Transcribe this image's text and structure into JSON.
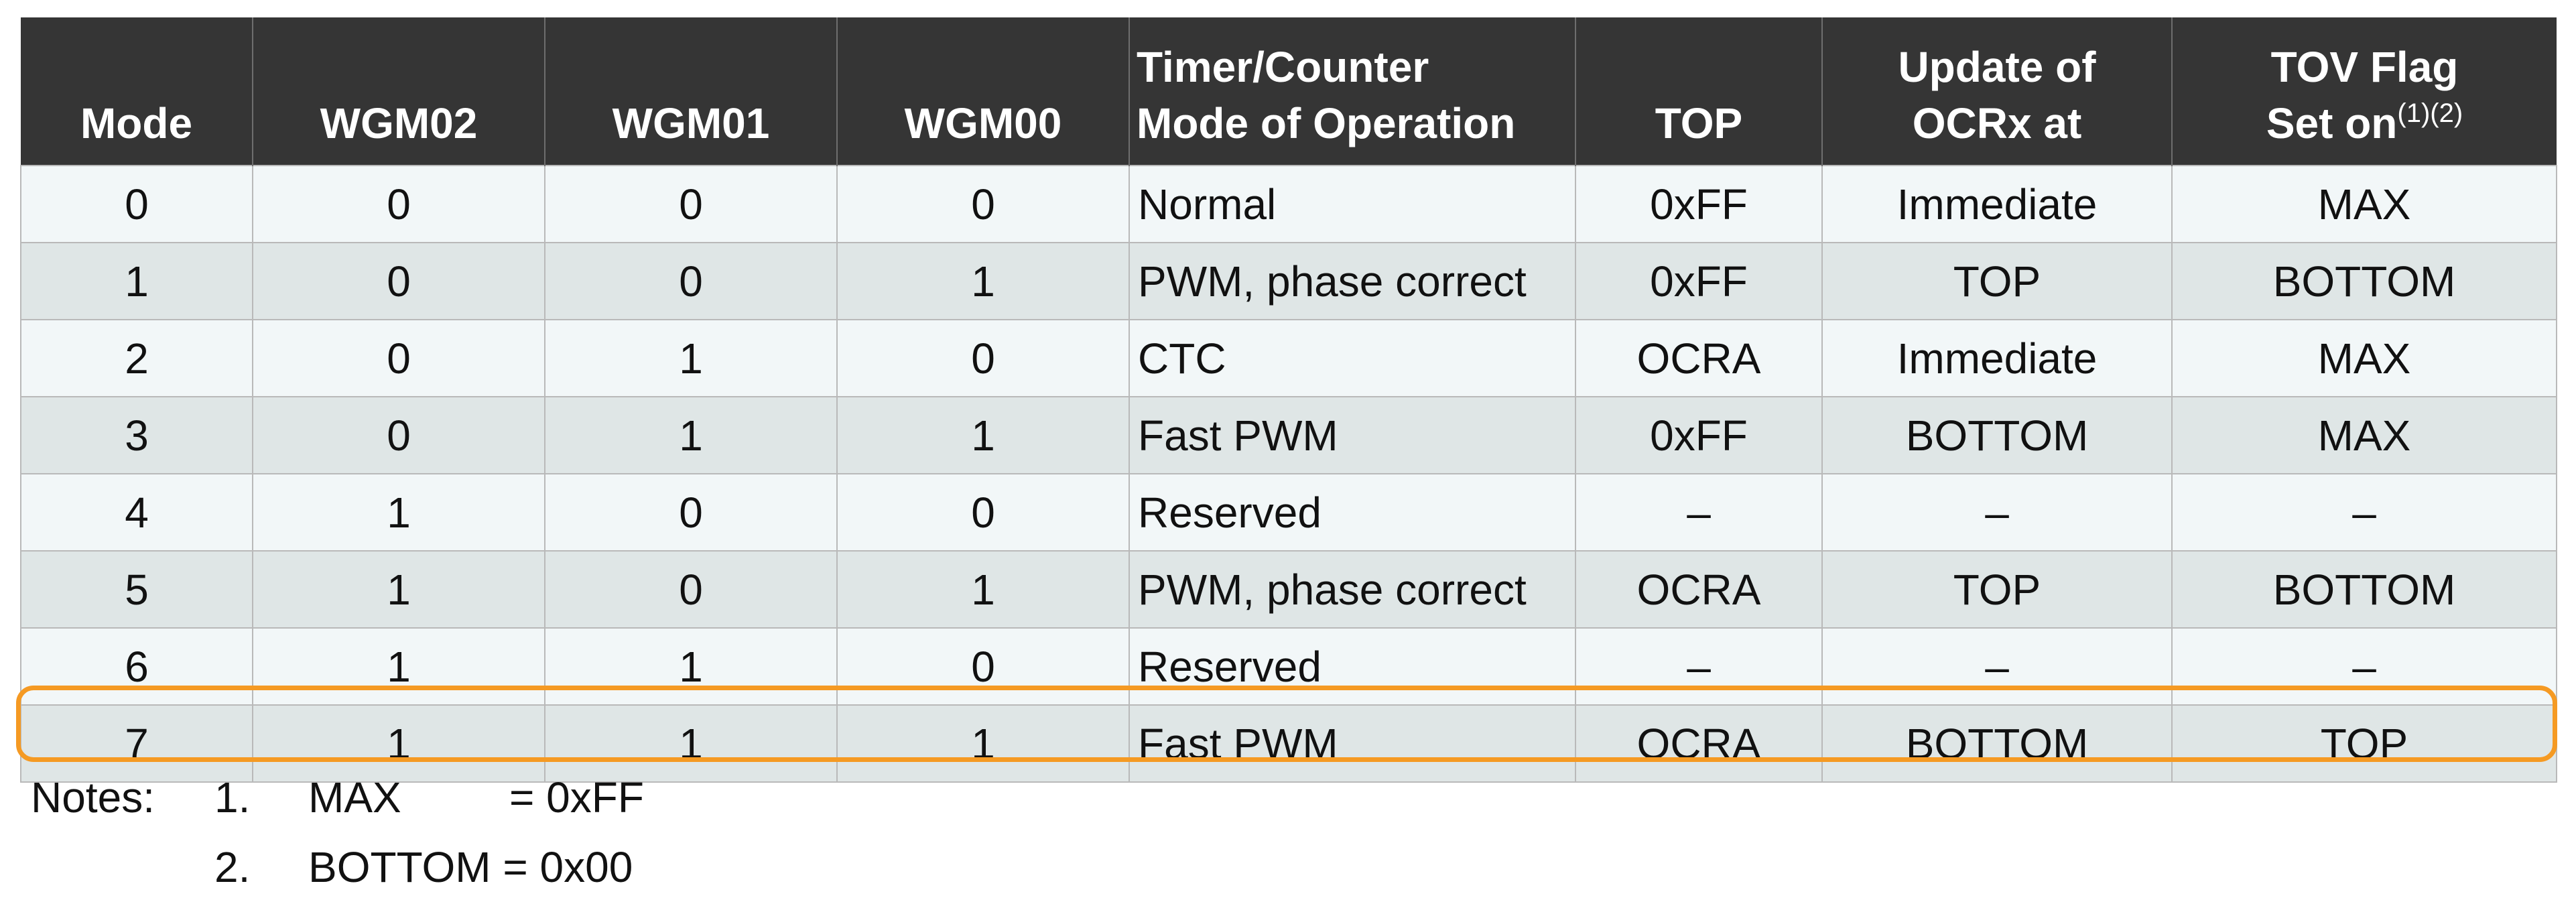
{
  "table": {
    "headers": [
      {
        "line1": "",
        "line2": "Mode",
        "sup": ""
      },
      {
        "line1": "",
        "line2": "WGM02",
        "sup": ""
      },
      {
        "line1": "",
        "line2": "WGM01",
        "sup": ""
      },
      {
        "line1": "",
        "line2": "WGM00",
        "sup": ""
      },
      {
        "line1": "Timer/Counter",
        "line2": "Mode of Operation",
        "sup": ""
      },
      {
        "line1": "",
        "line2": "TOP",
        "sup": ""
      },
      {
        "line1": "Update of",
        "line2": "OCRx at",
        "sup": ""
      },
      {
        "line1": "TOV Flag",
        "line2": "Set on",
        "sup": "(1)(2)"
      }
    ],
    "rows": [
      [
        "0",
        "0",
        "0",
        "0",
        "Normal",
        "0xFF",
        "Immediate",
        "MAX"
      ],
      [
        "1",
        "0",
        "0",
        "1",
        "PWM, phase correct",
        "0xFF",
        "TOP",
        "BOTTOM"
      ],
      [
        "2",
        "0",
        "1",
        "0",
        "CTC",
        "OCRA",
        "Immediate",
        "MAX"
      ],
      [
        "3",
        "0",
        "1",
        "1",
        "Fast PWM",
        "0xFF",
        "BOTTOM",
        "MAX"
      ],
      [
        "4",
        "1",
        "0",
        "0",
        "Reserved",
        "–",
        "–",
        "–"
      ],
      [
        "5",
        "1",
        "0",
        "1",
        "PWM, phase correct",
        "OCRA",
        "TOP",
        "BOTTOM"
      ],
      [
        "6",
        "1",
        "1",
        "0",
        "Reserved",
        "–",
        "–",
        "–"
      ],
      [
        "7",
        "1",
        "1",
        "1",
        "Fast PWM",
        "OCRA",
        "BOTTOM",
        "TOP"
      ]
    ],
    "highlighted_row": 7,
    "highlight_color": "#f59a23",
    "header_bg": "#353535"
  },
  "notes": {
    "heading": "Notes:",
    "items": [
      {
        "num": "1.",
        "term": "MAX",
        "value": "= 0xFF"
      },
      {
        "num": "2.",
        "term": "BOTTOM",
        "value": "= 0x00"
      }
    ]
  }
}
